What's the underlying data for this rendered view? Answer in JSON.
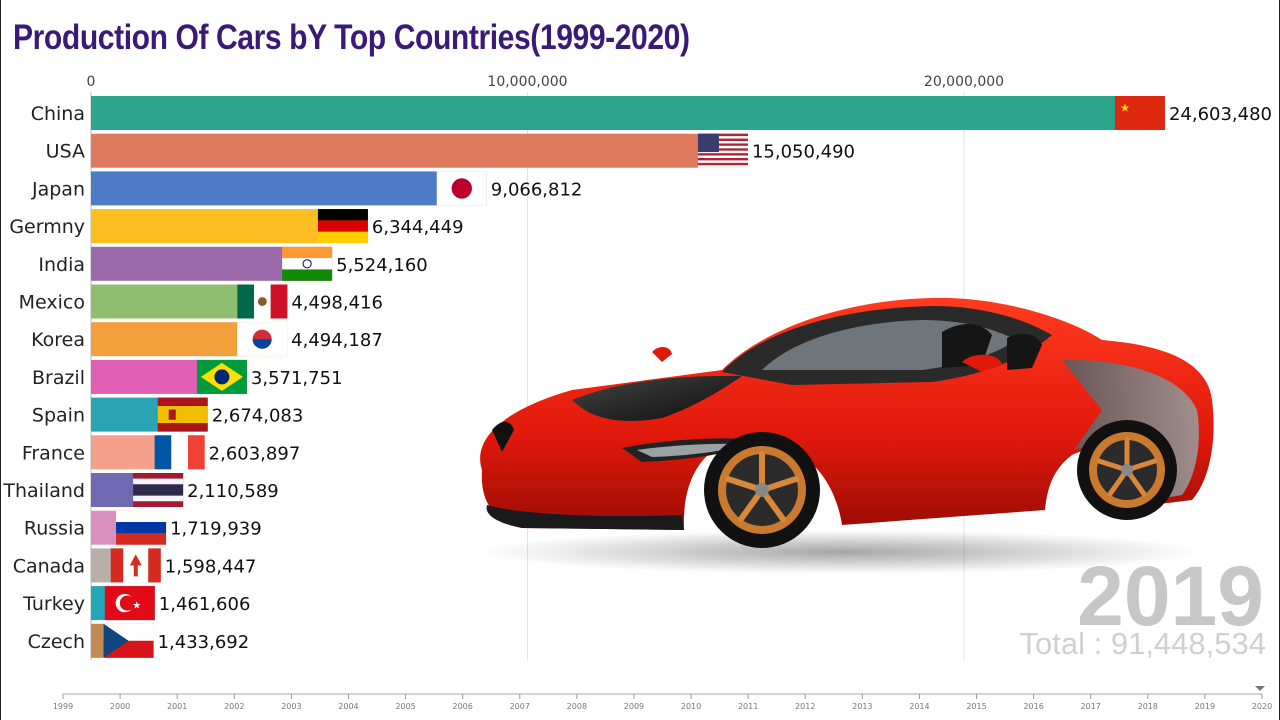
{
  "title": "Production Of Cars bY Top Countries(1999-2020)",
  "year": "2019",
  "total_label": "Total : 91,448,534",
  "timeline_years": [
    "1999",
    "2000",
    "2001",
    "2002",
    "2003",
    "2004",
    "2005",
    "2006",
    "2007",
    "2008",
    "2009",
    "2010",
    "2011",
    "2012",
    "2013",
    "2014",
    "2015",
    "2016",
    "2017",
    "2018",
    "2019",
    "2020"
  ],
  "chart_data": {
    "type": "bar",
    "orientation": "horizontal",
    "title": "Production Of Cars bY Top Countries(1999-2020)",
    "xlim": [
      0,
      25000000
    ],
    "xticks": [
      0,
      10000000,
      20000000
    ],
    "xtick_labels": [
      "0",
      "10,000,000",
      "20,000,000"
    ],
    "categories": [
      "China",
      "USA",
      "Japan",
      "Germny",
      "India",
      "Mexico",
      "Korea",
      "Brazil",
      "Spain",
      "France",
      "Thailand",
      "Russia",
      "Canada",
      "Turkey",
      "Czech"
    ],
    "values": [
      24603480,
      15050490,
      9066812,
      6344449,
      5524160,
      4498416,
      4494187,
      3571751,
      2674083,
      2603897,
      2110589,
      1719939,
      1598447,
      1461606,
      1433692
    ],
    "value_labels": [
      "24,603,480",
      "15,050,490",
      "9,066,812",
      "6,344,449",
      "5,524,160",
      "4,498,416",
      "4,494,187",
      "3,571,751",
      "2,674,083",
      "2,603,897",
      "2,110,589",
      "1,719,939",
      "1,598,447",
      "1,461,606",
      "1,433,692"
    ],
    "colors": [
      "#2ca58d",
      "#e07a5f",
      "#4f7cc6",
      "#fbbf24",
      "#9b6aaa",
      "#8fbf6e",
      "#f2a03d",
      "#e05fb5",
      "#2aa3b5",
      "#f4a08a",
      "#6e69b0",
      "#d98fc0",
      "#b8b0a8",
      "#22a7b8",
      "#c08a52"
    ],
    "flags": [
      "china",
      "usa",
      "japan",
      "germany",
      "india",
      "mexico",
      "korea",
      "brazil",
      "spain",
      "france",
      "thailand",
      "russia",
      "canada",
      "turkey",
      "czech"
    ],
    "grid": true
  }
}
